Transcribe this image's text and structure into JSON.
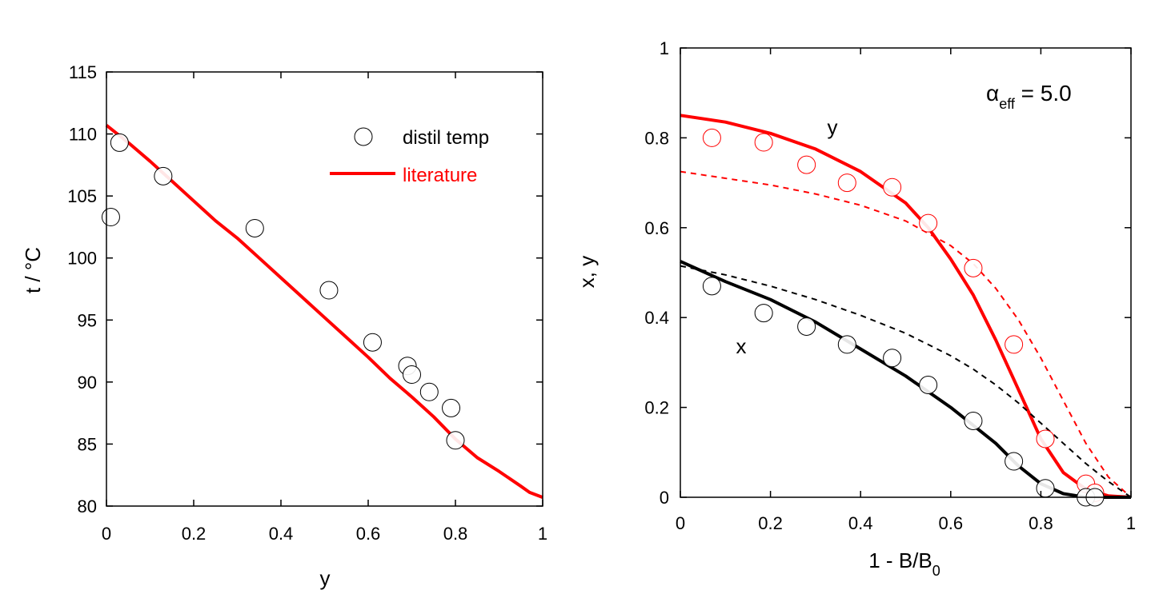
{
  "chart_data": [
    {
      "type": "scatter",
      "xlabel": "y",
      "ylabel": "t / °C",
      "xlim": [
        0,
        1
      ],
      "ylim": [
        80,
        115
      ],
      "x_ticks": [
        0,
        0.2,
        0.4,
        0.6,
        0.8,
        1
      ],
      "y_ticks": [
        80,
        85,
        90,
        95,
        100,
        105,
        110,
        115
      ],
      "x_tick_labels": [
        "0",
        "0.2",
        "0.4",
        "0.6",
        "0.8",
        "1"
      ],
      "y_tick_labels": [
        "80",
        "85",
        "90",
        "95",
        "100",
        "105",
        "110",
        "115"
      ],
      "grid": false,
      "legend": {
        "placement": "top-right",
        "entries": [
          {
            "label": "distil temp",
            "marker": "open-circle",
            "color": "#000000"
          },
          {
            "label": "literature",
            "marker": "line",
            "color": "#ff0000"
          }
        ]
      },
      "series": [
        {
          "name": "distil temp",
          "style": "markers",
          "color": "#000000",
          "x": [
            0.01,
            0.03,
            0.13,
            0.34,
            0.51,
            0.61,
            0.69,
            0.7,
            0.74,
            0.79,
            0.8
          ],
          "y": [
            103.3,
            109.3,
            106.6,
            102.4,
            97.4,
            93.2,
            91.3,
            90.6,
            89.2,
            87.9,
            85.3
          ]
        },
        {
          "name": "literature",
          "style": "line",
          "color": "#ff0000",
          "x": [
            0,
            0.05,
            0.1,
            0.15,
            0.2,
            0.25,
            0.3,
            0.35,
            0.4,
            0.45,
            0.5,
            0.55,
            0.6,
            0.65,
            0.7,
            0.75,
            0.8,
            0.85,
            0.9,
            0.95,
            0.97,
            1.0
          ],
          "y": [
            110.7,
            109.3,
            107.8,
            106.2,
            104.6,
            103.0,
            101.6,
            100.0,
            98.4,
            96.8,
            95.2,
            93.6,
            92.0,
            90.3,
            88.8,
            87.2,
            85.4,
            83.9,
            82.8,
            81.6,
            81.1,
            80.7
          ]
        }
      ]
    },
    {
      "type": "line",
      "xlabel_main": "1 - B/B",
      "xlabel_sub": "0",
      "ylabel": "x, y",
      "xlim": [
        0,
        1
      ],
      "ylim": [
        0,
        1
      ],
      "x_ticks": [
        0,
        0.2,
        0.4,
        0.6,
        0.8,
        1
      ],
      "y_ticks": [
        0,
        0.2,
        0.4,
        0.6,
        0.8,
        1
      ],
      "x_tick_labels": [
        "0",
        "0.2",
        "0.4",
        "0.6",
        "0.8",
        "1"
      ],
      "y_tick_labels": [
        "0",
        "0.2",
        "0.4",
        "0.6",
        "0.8",
        "1"
      ],
      "grid": false,
      "annotation": {
        "alpha": "α",
        "sub": "eff",
        "rest": " = 5.0"
      },
      "curve_labels": {
        "y": "y",
        "x": "x"
      },
      "series": [
        {
          "name": "y",
          "style": "solid",
          "color": "#ff0000",
          "x": [
            0,
            0.1,
            0.2,
            0.3,
            0.4,
            0.5,
            0.55,
            0.6,
            0.65,
            0.7,
            0.75,
            0.8,
            0.85,
            0.9,
            0.95,
            1.0
          ],
          "y": [
            0.85,
            0.835,
            0.81,
            0.775,
            0.725,
            0.655,
            0.6,
            0.53,
            0.45,
            0.35,
            0.24,
            0.13,
            0.055,
            0.018,
            0.003,
            0.0
          ]
        },
        {
          "style": "dashed",
          "color": "#ff0000",
          "x": [
            0,
            0.1,
            0.2,
            0.3,
            0.4,
            0.5,
            0.6,
            0.65,
            0.7,
            0.75,
            0.8,
            0.85,
            0.9,
            0.95,
            1.0
          ],
          "y": [
            0.725,
            0.71,
            0.695,
            0.675,
            0.65,
            0.615,
            0.56,
            0.52,
            0.465,
            0.395,
            0.31,
            0.215,
            0.12,
            0.045,
            0.0
          ]
        },
        {
          "name": "x",
          "style": "solid",
          "color": "#000000",
          "x": [
            0,
            0.1,
            0.2,
            0.3,
            0.4,
            0.5,
            0.6,
            0.65,
            0.7,
            0.75,
            0.8,
            0.85,
            0.9,
            0.95,
            1.0
          ],
          "y": [
            0.525,
            0.48,
            0.44,
            0.39,
            0.33,
            0.27,
            0.2,
            0.16,
            0.12,
            0.07,
            0.03,
            0.008,
            0.0,
            0.0,
            0.0
          ]
        },
        {
          "style": "dashed",
          "color": "#000000",
          "x": [
            0,
            0.1,
            0.2,
            0.3,
            0.4,
            0.5,
            0.6,
            0.65,
            0.7,
            0.75,
            0.8,
            0.85,
            0.9,
            0.95,
            1.0
          ],
          "y": [
            0.515,
            0.495,
            0.47,
            0.44,
            0.405,
            0.365,
            0.315,
            0.285,
            0.25,
            0.21,
            0.165,
            0.12,
            0.075,
            0.035,
            0.0
          ]
        },
        {
          "name": "y",
          "style": "markers",
          "color": "#ff0000",
          "x": [
            0.07,
            0.185,
            0.28,
            0.37,
            0.47,
            0.55,
            0.65,
            0.74,
            0.81,
            0.9,
            0.92
          ],
          "y": [
            0.8,
            0.79,
            0.74,
            0.7,
            0.69,
            0.61,
            0.51,
            0.34,
            0.13,
            0.03,
            0.01
          ]
        },
        {
          "name": "x",
          "style": "markers",
          "color": "#000000",
          "x": [
            0.07,
            0.185,
            0.28,
            0.37,
            0.47,
            0.55,
            0.65,
            0.74,
            0.81,
            0.9,
            0.92
          ],
          "y": [
            0.47,
            0.41,
            0.38,
            0.34,
            0.31,
            0.25,
            0.17,
            0.08,
            0.02,
            0.0,
            0.0
          ]
        }
      ]
    }
  ]
}
